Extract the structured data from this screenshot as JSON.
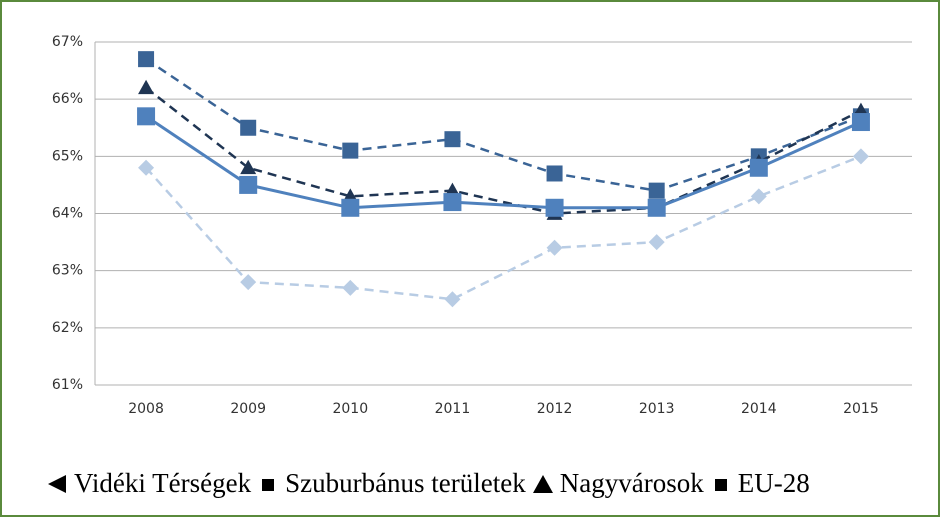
{
  "chart_data": {
    "type": "line",
    "categories": [
      "2008",
      "2009",
      "2010",
      "2011",
      "2012",
      "2013",
      "2014",
      "2015"
    ],
    "series": [
      {
        "name": "Vidéki Térségek",
        "color": "#b8cce4",
        "marker": "diamond",
        "dashed": true,
        "values": [
          64.8,
          62.8,
          62.7,
          62.5,
          63.4,
          63.5,
          64.3,
          65.0
        ]
      },
      {
        "name": "Szuburbánus területek",
        "color": "#3a6496",
        "marker": "square",
        "dashed": true,
        "values": [
          66.7,
          65.5,
          65.1,
          65.3,
          64.7,
          64.4,
          65.0,
          65.7
        ]
      },
      {
        "name": "Nagyvárosok",
        "color": "#1f3553",
        "marker": "triangle",
        "dashed": true,
        "values": [
          66.2,
          64.8,
          64.3,
          64.4,
          64.0,
          64.1,
          64.9,
          65.8
        ]
      },
      {
        "name": "EU-28",
        "color": "#4f81bd",
        "marker": "square",
        "dashed": false,
        "values": [
          65.7,
          64.5,
          64.1,
          64.2,
          64.1,
          64.1,
          64.8,
          65.6
        ]
      }
    ],
    "ylim": [
      61,
      67
    ],
    "yticks": [
      {
        "value": 61,
        "label": "61%"
      },
      {
        "value": 62,
        "label": "62%"
      },
      {
        "value": 63,
        "label": "63%"
      },
      {
        "value": 64,
        "label": "64%"
      },
      {
        "value": 65,
        "label": "65%"
      },
      {
        "value": 66,
        "label": "66%"
      },
      {
        "value": 67,
        "label": "67%"
      }
    ],
    "grid": true
  }
}
